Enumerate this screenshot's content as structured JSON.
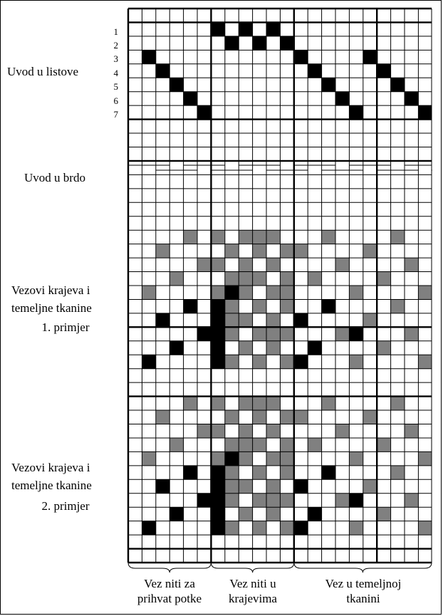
{
  "labels": {
    "uvod_listove": "Uvod u listove",
    "uvod_brdo": "Uvod u brdo",
    "ex1_line1": "Vezovi krajeva i",
    "ex1_line2": "temeljne tkanine",
    "ex1_line3": "1. primjer",
    "ex2_line1": "Vezovi krajeva i",
    "ex2_line2": "temeljne tkanine",
    "ex2_line3": "2. primjer"
  },
  "shaft_numbers": [
    "1",
    "2",
    "3",
    "4",
    "5",
    "6",
    "7"
  ],
  "bottom_labels": {
    "a1": "Vez niti za",
    "a2": "prihvat potke",
    "b1": "Vez niti u",
    "b2": "krajevima",
    "c1": "Vez u temeljnoj",
    "c2": "tkanini"
  },
  "colors": {
    "black_cell": "#000000",
    "gray_cell": "#808080",
    "grid_line": "#000000",
    "background": "#ffffff"
  }
}
